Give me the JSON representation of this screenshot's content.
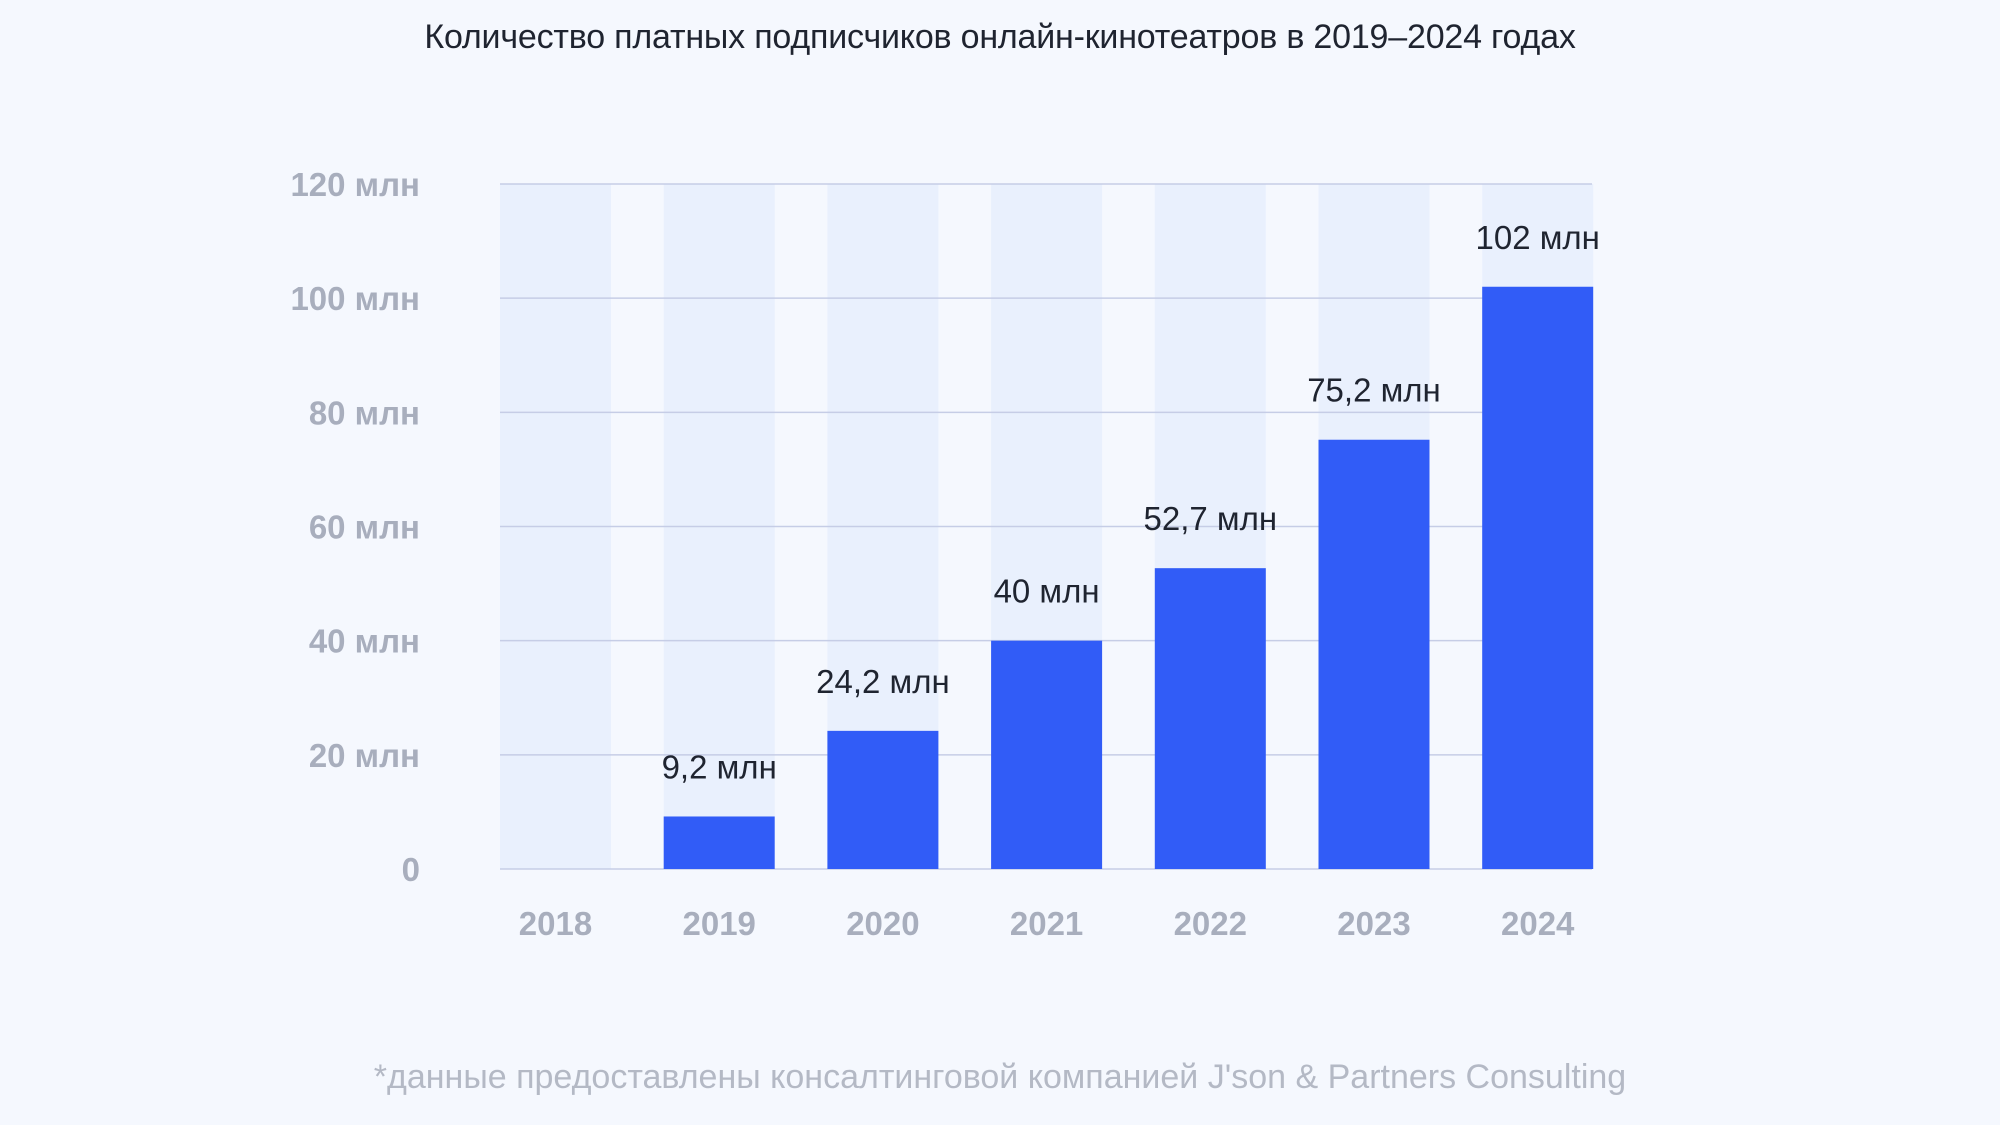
{
  "title": "Количество платных подписчиков онлайн-кинотеатров в 2019–2024 годах",
  "footnote": "*данные предоставлены консалтинговой компанией J'son & Partners Consulting",
  "colors": {
    "bar": "#315cf7",
    "column_band": "#e9f0fd",
    "grid": "#c6cde6",
    "background": "#f5f8fe"
  },
  "chart_data": {
    "type": "bar",
    "categories": [
      "2018",
      "2019",
      "2020",
      "2021",
      "2022",
      "2023",
      "2024"
    ],
    "values": [
      0,
      9.2,
      24.2,
      40,
      52.7,
      75.2,
      102
    ],
    "data_labels": [
      "",
      "9,2 млн",
      "24,2 млн",
      "40 млн",
      "52,7 млн",
      "75,2 млн",
      "102 млн"
    ],
    "y_ticks": [
      0,
      20,
      40,
      60,
      80,
      100,
      120
    ],
    "y_tick_labels": [
      "0",
      "20 млн",
      "40 млн",
      "60 млн",
      "80 млн",
      "100 млн",
      "120 млн"
    ],
    "ylim": [
      0,
      120
    ],
    "grid": true
  }
}
